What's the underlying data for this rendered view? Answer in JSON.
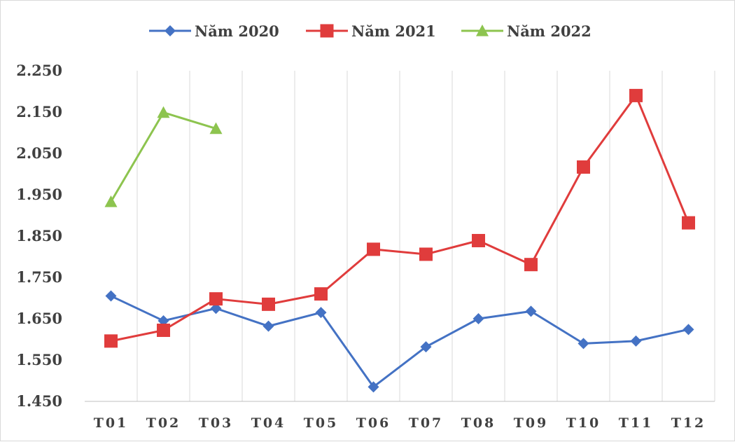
{
  "chart_data": {
    "type": "line",
    "title": "",
    "xlabel": "",
    "ylabel": "",
    "categories": [
      "T01",
      "T02",
      "T03",
      "T04",
      "T05",
      "T06",
      "T07",
      "T08",
      "T09",
      "T10",
      "T11",
      "T12"
    ],
    "ylim": [
      1.45,
      2.25
    ],
    "yticks": [
      1.45,
      1.55,
      1.65,
      1.75,
      1.85,
      1.95,
      2.05,
      2.15,
      2.25
    ],
    "ytick_labels": [
      "1.450",
      "1.550",
      "1.650",
      "1.750",
      "1.850",
      "1.950",
      "2.050",
      "2.150",
      "2.250"
    ],
    "grid": "vertical",
    "legend_position": "top",
    "series": [
      {
        "name": "Năm 2020",
        "color": "#4472c4",
        "marker": "diamond",
        "values": [
          1.705,
          1.645,
          1.675,
          1.632,
          1.665,
          1.485,
          1.582,
          1.65,
          1.668,
          1.59,
          1.596,
          1.624
        ]
      },
      {
        "name": "Năm 2021",
        "color": "#e03c3c",
        "marker": "square",
        "values": [
          1.596,
          1.622,
          1.698,
          1.685,
          1.71,
          1.818,
          1.806,
          1.839,
          1.781,
          2.017,
          2.19,
          1.882
        ]
      },
      {
        "name": "Năm 2022",
        "color": "#8dc44f",
        "marker": "triangle",
        "values": [
          1.933,
          2.149,
          2.11,
          null,
          null,
          null,
          null,
          null,
          null,
          null,
          null,
          null
        ]
      }
    ]
  }
}
